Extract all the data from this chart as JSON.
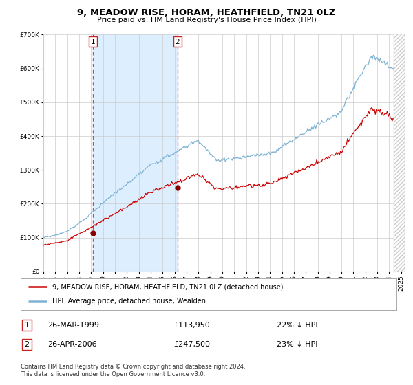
{
  "title": "9, MEADOW RISE, HORAM, HEATHFIELD, TN21 0LZ",
  "subtitle": "Price paid vs. HM Land Registry's House Price Index (HPI)",
  "legend_line1": "9, MEADOW RISE, HORAM, HEATHFIELD, TN21 0LZ (detached house)",
  "legend_line2": "HPI: Average price, detached house, Wealden",
  "sale1_date": "26-MAR-1999",
  "sale1_price": 113950,
  "sale2_date": "26-APR-2006",
  "sale2_price": 247500,
  "sale1_pct": "22% ↓ HPI",
  "sale2_pct": "23% ↓ HPI",
  "footer": "Contains HM Land Registry data © Crown copyright and database right 2024.\nThis data is licensed under the Open Government Licence v3.0.",
  "hpi_color": "#7fb3d3",
  "price_paid_color": "#cc0000",
  "marker_color": "#880000",
  "dashed_line_color": "#dd4444",
  "shading_color": "#ddeeff",
  "background_color": "#ffffff",
  "grid_color": "#cccccc",
  "ylim": [
    0,
    700000
  ],
  "xlabel_fontsize": 7,
  "ylabel_fontsize": 7
}
